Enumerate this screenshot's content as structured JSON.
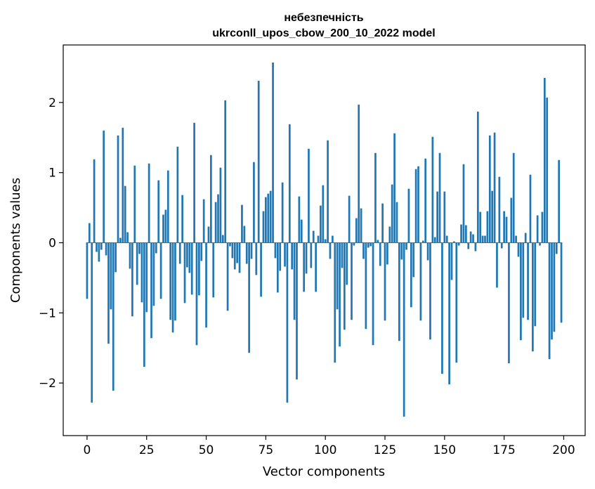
{
  "chart_data": {
    "type": "bar",
    "title_line1": "небезпечність",
    "title_line2": "ukrconll_upos_cbow_200_10_2022 model",
    "xlabel": "Vector components",
    "ylabel": "Components values",
    "xlim": [
      -10,
      209
    ],
    "ylim": [
      -2.75,
      2.82
    ],
    "xticks": [
      0,
      25,
      50,
      75,
      100,
      125,
      150,
      175,
      200
    ],
    "yticks": [
      -2,
      -1,
      0,
      1,
      2
    ],
    "ytick_labels": [
      "−2",
      "−1",
      "0",
      "1",
      "2"
    ],
    "bar_color": "#1f77b4",
    "grid": false,
    "values": [
      -0.8,
      0.28,
      -2.28,
      1.19,
      -0.13,
      -0.27,
      -0.1,
      1.6,
      -0.18,
      -1.44,
      -0.95,
      -2.11,
      -0.42,
      1.53,
      0.07,
      1.64,
      0.81,
      0.15,
      -0.37,
      -1.05,
      1.1,
      -0.6,
      -0.16,
      -0.85,
      -1.77,
      -0.99,
      1.13,
      -1.36,
      -0.9,
      -0.15,
      0.89,
      -0.8,
      0.4,
      0.47,
      1.03,
      -1.1,
      -1.28,
      -1.11,
      1.37,
      -0.3,
      0.68,
      -0.86,
      -0.35,
      -0.43,
      -0.74,
      1.71,
      -1.46,
      -0.75,
      -0.26,
      0.62,
      -1.21,
      0.23,
      1.25,
      -0.78,
      0.58,
      0.69,
      1.07,
      0.11,
      2.03,
      -0.97,
      -0.05,
      -0.22,
      -0.38,
      -0.29,
      -0.43,
      0.54,
      0.24,
      -0.3,
      -1.57,
      -0.23,
      1.15,
      -0.46,
      2.31,
      -0.77,
      0.45,
      0.65,
      0.7,
      0.74,
      2.57,
      -0.22,
      -0.71,
      -0.4,
      0.86,
      -0.34,
      -2.28,
      1.69,
      -0.38,
      -1.1,
      -1.95,
      0.66,
      0.33,
      -0.7,
      -0.44,
      1.34,
      -0.36,
      0.17,
      -0.7,
      0.1,
      0.53,
      0.82,
      0.05,
      1.46,
      -0.23,
      0.1,
      -1.71,
      -0.95,
      -1.48,
      -0.36,
      -1.24,
      -0.6,
      0.67,
      -1.1,
      -0.04,
      0.35,
      1.97,
      0.49,
      -0.23,
      -1.23,
      -0.07,
      -0.05,
      -1.46,
      1.28,
      0.04,
      -0.33,
      0.56,
      -1.11,
      -0.31,
      0.23,
      0.83,
      1.56,
      0.58,
      -1.4,
      -0.24,
      -2.48,
      -0.1,
      0.77,
      -0.92,
      -0.49,
      1.05,
      1.09,
      -1.11,
      0.03,
      1.2,
      -0.25,
      -1.38,
      1.51,
      0.08,
      0.73,
      1.28,
      -1.87,
      0.73,
      0.1,
      -2.02,
      -0.53,
      0.02,
      -1.71,
      -0.04,
      0.26,
      1.12,
      0.25,
      -0.09,
      0.16,
      0.12,
      -0.12,
      1.87,
      0.44,
      0.1,
      0.1,
      0.45,
      1.53,
      0.74,
      1.57,
      -0.64,
      0.94,
      -0.08,
      0.45,
      0.37,
      -1.72,
      0.64,
      1.28,
      0.1,
      -0.2,
      -1.39,
      -1.07,
      0.14,
      -1.1,
      0.97,
      -1.55,
      -1.19,
      0.39,
      -0.04,
      0.44,
      2.35,
      2.07,
      -1.66,
      -1.38,
      -1.27,
      -0.16,
      1.18,
      -1.14
    ]
  }
}
